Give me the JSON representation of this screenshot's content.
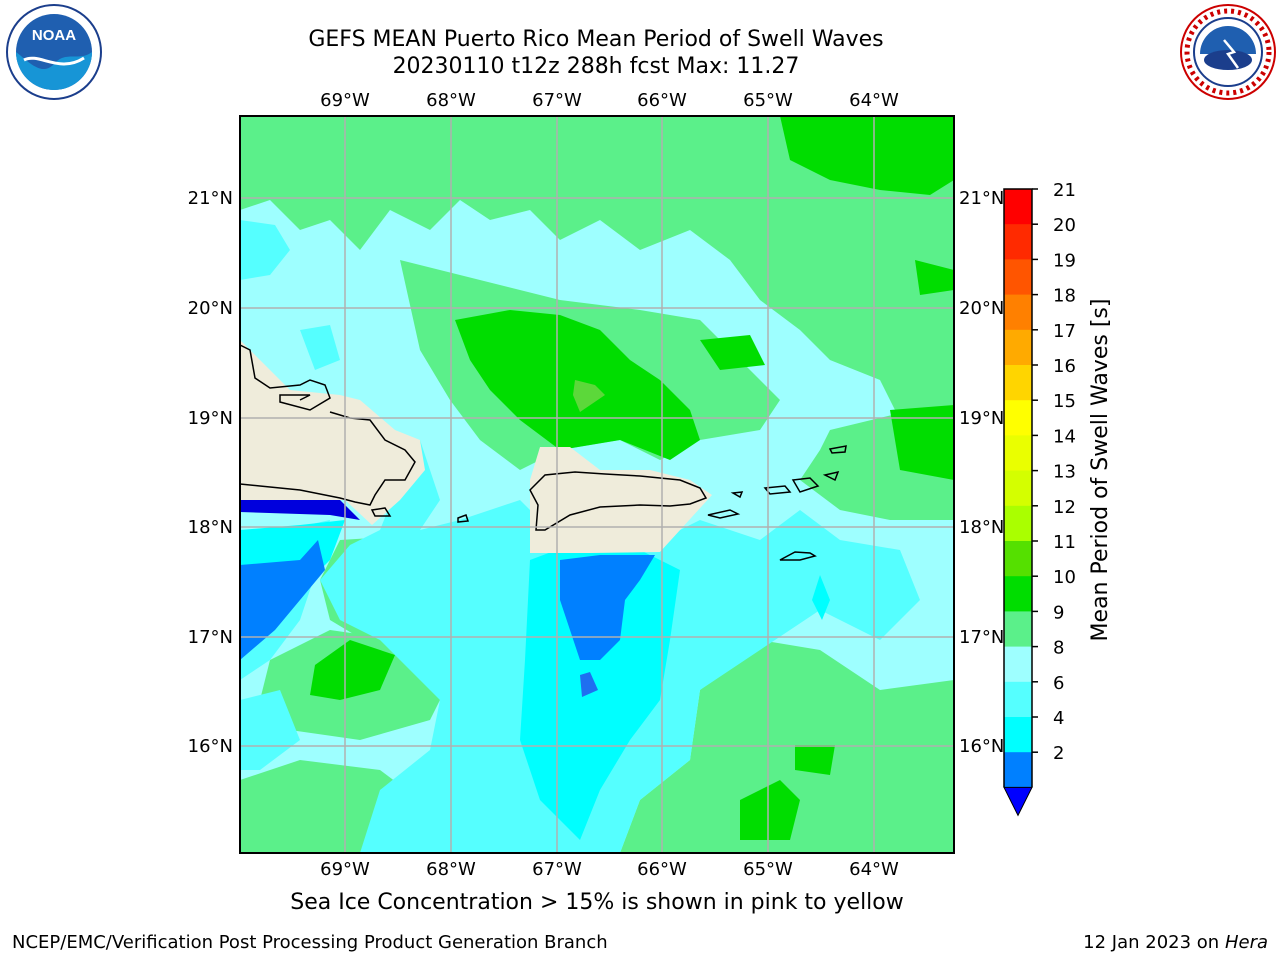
{
  "header": {
    "title_line1": "GEFS MEAN Puerto Rico Mean Period of Swell Waves",
    "title_line2": "20230110 t12z 288h fcst   Max: 11.27"
  },
  "map": {
    "lon_labels": [
      "69°W",
      "68°W",
      "67°W",
      "66°W",
      "65°W",
      "64°W"
    ],
    "lat_labels": [
      "21°N",
      "20°N",
      "19°N",
      "18°N",
      "17°N",
      "16°N"
    ],
    "colors": {
      "land": "#efecdb",
      "band_8_9": "#9effff",
      "band_9_10": "#5bf08a",
      "band_10_11": "#00dd00",
      "band_6_8": "#55ffff",
      "band_4_6": "#00ffff",
      "band_2_4": "#0080ff",
      "band_below_2": "#0000dd"
    }
  },
  "colorbar": {
    "label": "Mean Period of Swell Waves [s]",
    "ticks": [
      "21",
      "20",
      "19",
      "18",
      "17",
      "16",
      "15",
      "14",
      "13",
      "12",
      "11",
      "10",
      "9",
      "8",
      "6",
      "4",
      "2"
    ],
    "colors": [
      "#ff0000",
      "#ff2a00",
      "#ff5500",
      "#ff8000",
      "#ffaa00",
      "#ffd500",
      "#ffff00",
      "#eaff00",
      "#d4ff00",
      "#aaff00",
      "#55e000",
      "#00dd00",
      "#5bf08a",
      "#9effff",
      "#55ffff",
      "#00ffff",
      "#0080ff"
    ],
    "extend_color": "#0000ff"
  },
  "caption": "Sea Ice Concentration > 15% is shown in pink to yellow",
  "footer": {
    "left": "NCEP/EMC/Verification Post Processing Product Generation Branch",
    "right_prefix": "12 Jan 2023 on ",
    "right_italic": "Hera"
  },
  "logos": {
    "noaa_text": "NOAA",
    "nws_text": "NATIONAL WEATHER SERVICE"
  }
}
